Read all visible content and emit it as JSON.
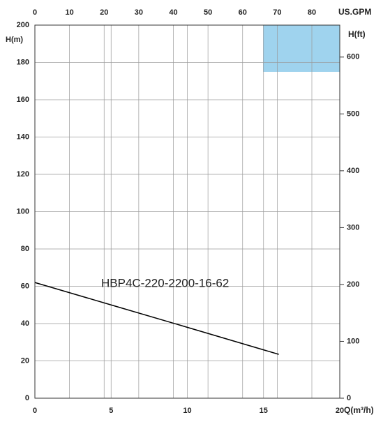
{
  "chart_data": {
    "type": "line",
    "x_label": "Q(m³/h)",
    "y_label": "H(m)",
    "x2_label": "US.GPM",
    "y2_label": "H(ft)",
    "xlim": [
      0,
      20
    ],
    "xticks": [
      0,
      5,
      10,
      15,
      20
    ],
    "ylim": [
      0,
      200
    ],
    "yticks": [
      0,
      20,
      40,
      60,
      80,
      100,
      120,
      140,
      160,
      180,
      200
    ],
    "x2lim": [
      0,
      88.06
    ],
    "x2ticks": [
      0,
      10,
      20,
      30,
      40,
      50,
      60,
      70,
      80
    ],
    "y2lim": [
      0,
      656.2
    ],
    "y2ticks": [
      0,
      100,
      200,
      300,
      400,
      500,
      600
    ],
    "grid": true,
    "series": [
      {
        "name": "HBP4C-220-2200-16-62",
        "color": "#000000",
        "x": [
          0,
          5,
          10,
          16
        ],
        "values": [
          62,
          50,
          38,
          23.5
        ]
      }
    ]
  }
}
